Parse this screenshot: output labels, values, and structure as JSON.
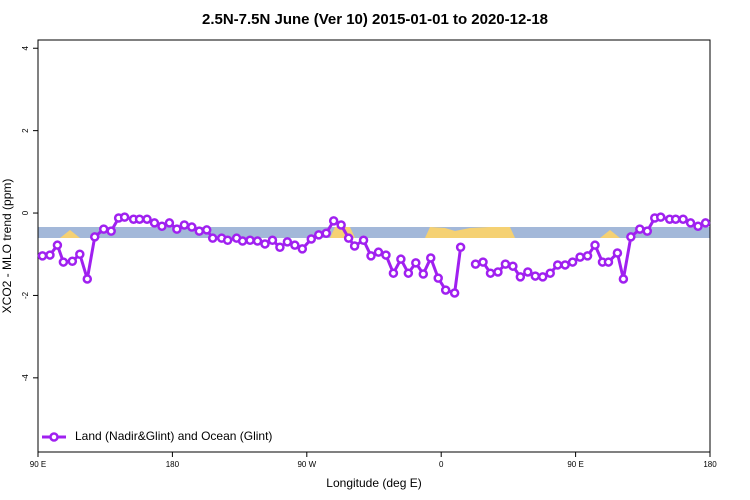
{
  "chart_data": {
    "type": "line",
    "title": "2.5N-7.5N June (Ver 10)   2015-01-01 to 2020-12-18",
    "x_label": "Longitude (deg E)",
    "y_label": "XCO2 - MLO trend (ppm)",
    "xlim": [
      90,
      540
    ],
    "xticks": [
      {
        "value": 90,
        "label": "90 E"
      },
      {
        "value": 180,
        "label": "180"
      },
      {
        "value": 270,
        "label": "90 W"
      },
      {
        "value": 360,
        "label": "0"
      },
      {
        "value": 450,
        "label": "90 E"
      },
      {
        "value": 540,
        "label": "180"
      }
    ],
    "ylim": [
      -5.8,
      4.2
    ],
    "yticks": [
      4,
      2,
      0,
      -2,
      -4
    ],
    "legend": "bottom-left",
    "series": [
      {
        "name": "Land (Nadir&Glint) and Ocean (Glint)",
        "color": "#a020f0",
        "x": [
          93,
          98,
          103,
          107,
          113,
          118,
          123,
          128,
          134,
          139,
          144,
          148,
          154,
          158,
          163,
          168,
          173,
          178,
          183,
          188,
          193,
          198,
          203,
          207,
          213,
          217,
          223,
          227,
          232,
          237,
          242,
          247,
          252,
          257,
          262,
          267,
          273,
          278,
          283,
          288,
          293,
          298,
          302,
          308,
          313,
          318,
          323,
          328,
          333,
          338,
          343,
          348,
          353,
          358,
          363,
          369,
          373,
          378,
          383,
          388,
          393,
          398,
          403,
          408,
          413,
          418,
          423,
          428,
          433,
          438,
          443,
          448,
          453,
          458,
          463,
          468,
          472,
          478,
          482,
          487,
          493,
          498,
          503,
          507,
          513,
          517,
          522,
          527,
          532,
          537
        ],
        "values": [
          -1.04,
          -1.02,
          -0.78,
          -1.19,
          -1.17,
          -1.0,
          -1.6,
          -0.58,
          -0.39,
          -0.44,
          -0.12,
          -0.1,
          -0.15,
          -0.15,
          -0.15,
          -0.24,
          -0.32,
          -0.24,
          -0.39,
          -0.29,
          -0.34,
          -0.44,
          -0.41,
          -0.61,
          -0.61,
          -0.66,
          -0.61,
          -0.68,
          -0.66,
          -0.68,
          -0.75,
          -0.66,
          -0.83,
          -0.7,
          -0.78,
          -0.87,
          -0.63,
          -0.53,
          -0.49,
          -0.19,
          -0.29,
          -0.61,
          -0.8,
          -0.66,
          -1.04,
          -0.95,
          -1.02,
          -1.46,
          -1.12,
          -1.46,
          -1.21,
          -1.48,
          -1.09,
          -1.58,
          -1.87,
          -1.94,
          -0.83,
          null,
          -1.24,
          -1.19,
          -1.46,
          -1.43,
          -1.24,
          -1.29,
          -1.55,
          -1.43,
          -1.53,
          -1.55,
          -1.46,
          -1.26,
          -1.26,
          -1.19,
          -1.07,
          -1.04,
          -0.78,
          -1.19,
          -1.19,
          -0.97,
          -1.6,
          -0.58,
          -0.39,
          -0.44,
          -0.12,
          -0.1,
          -0.15,
          -0.15,
          -0.15,
          -0.24,
          -0.32,
          -0.24
        ]
      }
    ]
  }
}
